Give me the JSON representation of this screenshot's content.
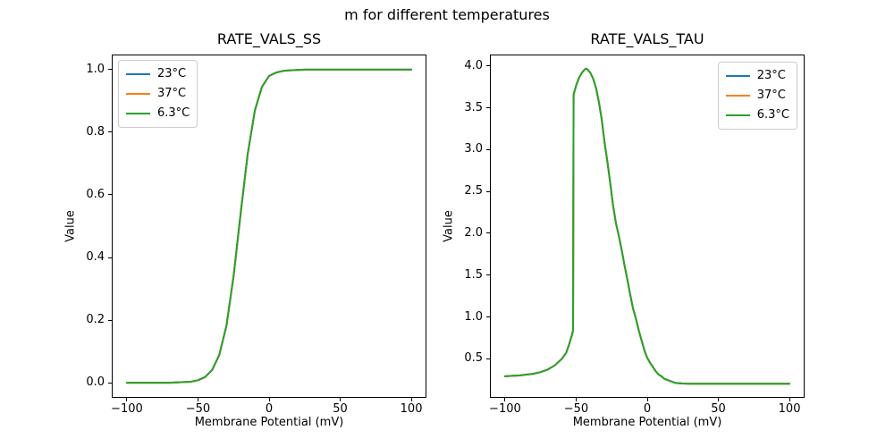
{
  "figure": {
    "suptitle": "m for different temperatures",
    "background": "#ffffff"
  },
  "legend": {
    "entries": [
      {
        "label": "23°C",
        "color": "#1f77b4"
      },
      {
        "label": "37°C",
        "color": "#ff7f0e"
      },
      {
        "label": "6.3°C",
        "color": "#2ca02c"
      }
    ]
  },
  "chart_data": [
    {
      "type": "line",
      "title": "RATE_VALS_SS",
      "xlabel": "Membrane Potential (mV)",
      "ylabel": "Value",
      "xlim": [
        -110,
        110
      ],
      "ylim": [
        -0.0455,
        1.0455
      ],
      "grid": false,
      "legend_position": "upper-left",
      "overlap_note": "all three temperature curves coincide exactly; 6.3°C (green) drawn last on top",
      "xticks": [
        {
          "v": -100,
          "label": "−100"
        },
        {
          "v": -50,
          "label": "−50"
        },
        {
          "v": 0,
          "label": "0"
        },
        {
          "v": 50,
          "label": "50"
        },
        {
          "v": 100,
          "label": "100"
        }
      ],
      "yticks": [
        {
          "v": 0.0,
          "label": "0.0"
        },
        {
          "v": 0.2,
          "label": "0.2"
        },
        {
          "v": 0.4,
          "label": "0.4"
        },
        {
          "v": 0.6,
          "label": "0.6"
        },
        {
          "v": 0.8,
          "label": "0.8"
        },
        {
          "v": 1.0,
          "label": "1.0"
        }
      ],
      "x": [
        -100,
        -95,
        -90,
        -85,
        -80,
        -75,
        -70,
        -65,
        -60,
        -55,
        -50,
        -45,
        -40,
        -35,
        -30,
        -25,
        -20,
        -15,
        -10,
        -5,
        0,
        5,
        10,
        15,
        20,
        25,
        30,
        35,
        40,
        45,
        50,
        55,
        60,
        65,
        70,
        75,
        80,
        85,
        90,
        95,
        100
      ],
      "series": [
        {
          "name": "23°C",
          "color": "#1f77b4",
          "values": [
            0,
            0,
            0,
            0,
            0,
            0,
            0,
            0.001,
            0.002,
            0.003,
            0.008,
            0.018,
            0.041,
            0.089,
            0.182,
            0.339,
            0.541,
            0.731,
            0.87,
            0.945,
            0.98,
            0.991,
            0.996,
            0.998,
            0.999,
            1,
            1,
            1,
            1,
            1,
            1,
            1,
            1,
            1,
            1,
            1,
            1,
            1,
            1,
            1,
            1
          ]
        },
        {
          "name": "37°C",
          "color": "#ff7f0e",
          "values": [
            0,
            0,
            0,
            0,
            0,
            0,
            0,
            0.001,
            0.002,
            0.003,
            0.008,
            0.018,
            0.041,
            0.089,
            0.182,
            0.339,
            0.541,
            0.731,
            0.87,
            0.945,
            0.98,
            0.991,
            0.996,
            0.998,
            0.999,
            1,
            1,
            1,
            1,
            1,
            1,
            1,
            1,
            1,
            1,
            1,
            1,
            1,
            1,
            1,
            1
          ]
        },
        {
          "name": "6.3°C",
          "color": "#2ca02c",
          "values": [
            0,
            0,
            0,
            0,
            0,
            0,
            0,
            0.001,
            0.002,
            0.003,
            0.008,
            0.018,
            0.041,
            0.089,
            0.182,
            0.339,
            0.541,
            0.731,
            0.87,
            0.945,
            0.98,
            0.991,
            0.996,
            0.998,
            0.999,
            1,
            1,
            1,
            1,
            1,
            1,
            1,
            1,
            1,
            1,
            1,
            1,
            1,
            1,
            1,
            1
          ]
        }
      ]
    },
    {
      "type": "line",
      "title": "RATE_VALS_TAU",
      "xlabel": "Membrane Potential (mV)",
      "ylabel": "Value",
      "xlim": [
        -110,
        110
      ],
      "ylim": [
        0.043,
        4.128
      ],
      "grid": false,
      "legend_position": "upper-right",
      "overlap_note": "all three temperature curves coincide exactly; 6.3°C (green) drawn last on top; vertical discontinuity near −52 mV; peak ≈3.97 at ≈−43 mV",
      "xticks": [
        {
          "v": -100,
          "label": "−100"
        },
        {
          "v": -50,
          "label": "−50"
        },
        {
          "v": 0,
          "label": "0"
        },
        {
          "v": 50,
          "label": "50"
        },
        {
          "v": 100,
          "label": "100"
        }
      ],
      "yticks": [
        {
          "v": 0.5,
          "label": "0.5"
        },
        {
          "v": 1.0,
          "label": "1.0"
        },
        {
          "v": 1.5,
          "label": "1.5"
        },
        {
          "v": 2.0,
          "label": "2.0"
        },
        {
          "v": 2.5,
          "label": "2.5"
        },
        {
          "v": 3.0,
          "label": "3.0"
        },
        {
          "v": 3.5,
          "label": "3.5"
        },
        {
          "v": 4.0,
          "label": "4.0"
        }
      ],
      "x": [
        -100,
        -95,
        -90,
        -85,
        -80,
        -75,
        -70,
        -65,
        -60,
        -57,
        -55,
        -53,
        -52.2,
        -51.8,
        -50,
        -48,
        -46,
        -44,
        -43,
        -42,
        -40,
        -38,
        -36,
        -34,
        -32,
        -30,
        -28,
        -26,
        -24,
        -22,
        -20,
        -18,
        -16,
        -14,
        -12,
        -10,
        -8,
        -6,
        -4,
        -2,
        0,
        2,
        4,
        6,
        8,
        10,
        12,
        15,
        20,
        25,
        30,
        40,
        50,
        60,
        70,
        80,
        90,
        100
      ],
      "series": [
        {
          "name": "23°C",
          "color": "#1f77b4",
          "values": [
            0.29,
            0.295,
            0.3,
            0.31,
            0.32,
            0.34,
            0.37,
            0.42,
            0.5,
            0.57,
            0.67,
            0.78,
            0.84,
            3.66,
            3.77,
            3.86,
            3.92,
            3.96,
            3.97,
            3.96,
            3.92,
            3.85,
            3.74,
            3.57,
            3.36,
            3.08,
            2.85,
            2.6,
            2.33,
            2.12,
            1.97,
            1.8,
            1.62,
            1.45,
            1.27,
            1.1,
            0.98,
            0.84,
            0.72,
            0.6,
            0.51,
            0.45,
            0.4,
            0.35,
            0.31,
            0.29,
            0.26,
            0.24,
            0.21,
            0.203,
            0.2,
            0.2,
            0.2,
            0.2,
            0.2,
            0.2,
            0.2,
            0.2
          ]
        },
        {
          "name": "37°C",
          "color": "#ff7f0e",
          "values": [
            0.29,
            0.295,
            0.3,
            0.31,
            0.32,
            0.34,
            0.37,
            0.42,
            0.5,
            0.57,
            0.67,
            0.78,
            0.84,
            3.66,
            3.77,
            3.86,
            3.92,
            3.96,
            3.97,
            3.96,
            3.92,
            3.85,
            3.74,
            3.57,
            3.36,
            3.08,
            2.85,
            2.6,
            2.33,
            2.12,
            1.97,
            1.8,
            1.62,
            1.45,
            1.27,
            1.1,
            0.98,
            0.84,
            0.72,
            0.6,
            0.51,
            0.45,
            0.4,
            0.35,
            0.31,
            0.29,
            0.26,
            0.24,
            0.21,
            0.203,
            0.2,
            0.2,
            0.2,
            0.2,
            0.2,
            0.2,
            0.2,
            0.2
          ]
        },
        {
          "name": "6.3°C",
          "color": "#2ca02c",
          "values": [
            0.29,
            0.295,
            0.3,
            0.31,
            0.32,
            0.34,
            0.37,
            0.42,
            0.5,
            0.57,
            0.67,
            0.78,
            0.84,
            3.66,
            3.77,
            3.86,
            3.92,
            3.96,
            3.97,
            3.96,
            3.92,
            3.85,
            3.74,
            3.57,
            3.36,
            3.08,
            2.85,
            2.6,
            2.33,
            2.12,
            1.97,
            1.8,
            1.62,
            1.45,
            1.27,
            1.1,
            0.98,
            0.84,
            0.72,
            0.6,
            0.51,
            0.45,
            0.4,
            0.35,
            0.31,
            0.29,
            0.26,
            0.24,
            0.21,
            0.203,
            0.2,
            0.2,
            0.2,
            0.2,
            0.2,
            0.2,
            0.2,
            0.2
          ]
        }
      ]
    }
  ]
}
